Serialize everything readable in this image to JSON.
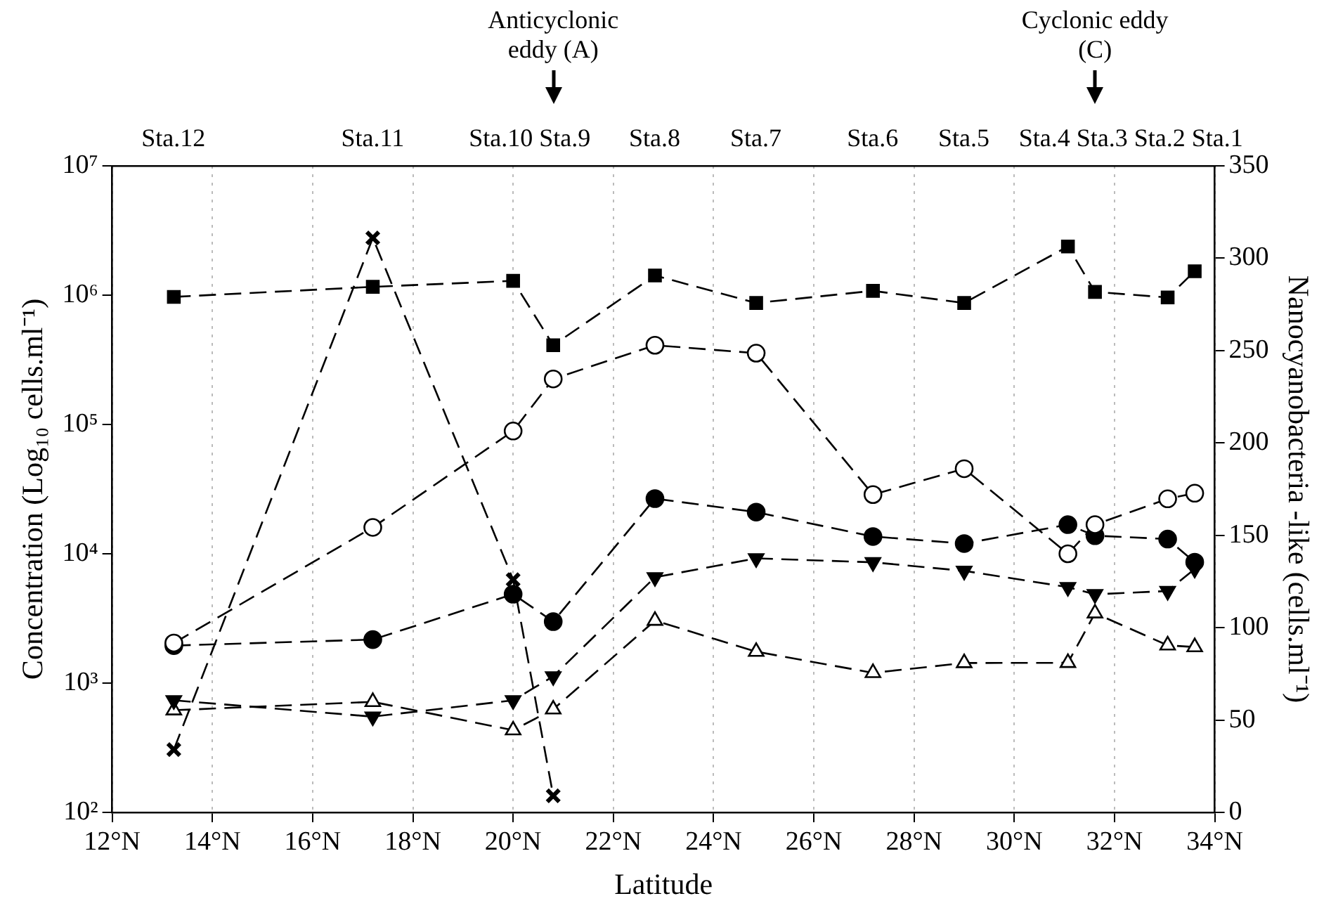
{
  "chart_data": {
    "type": "line",
    "xlabel": "Latitude",
    "ylabel": "Concentration (Log₁₀ cells.ml⁻¹)",
    "y2label": "Nanocyanobacteria -like (cells.ml⁻¹)",
    "x": [
      13.23,
      17.2,
      20.0,
      20.8,
      22.83,
      24.85,
      27.18,
      29.0,
      31.07,
      31.61,
      33.06,
      33.6
    ],
    "xlim": [
      12,
      34
    ],
    "xticks": [
      {
        "value": 12,
        "label": "12°N"
      },
      {
        "value": 14,
        "label": "14°N"
      },
      {
        "value": 16,
        "label": "16°N"
      },
      {
        "value": 18,
        "label": "18°N"
      },
      {
        "value": 20,
        "label": "20°N"
      },
      {
        "value": 22,
        "label": "22°N"
      },
      {
        "value": 24,
        "label": "24°N"
      },
      {
        "value": 26,
        "label": "26°N"
      },
      {
        "value": 28,
        "label": "28°N"
      },
      {
        "value": 30,
        "label": "30°N"
      },
      {
        "value": 32,
        "label": "32°N"
      },
      {
        "value": 34,
        "label": "34°N"
      }
    ],
    "log": "y",
    "ylim": [
      100,
      10000000
    ],
    "yticks": [
      {
        "value": 100,
        "label": "10²"
      },
      {
        "value": 1000,
        "label": "10³"
      },
      {
        "value": 10000,
        "label": "10⁴"
      },
      {
        "value": 100000,
        "label": "10⁵"
      },
      {
        "value": 1000000,
        "label": "10⁶"
      },
      {
        "value": 10000000,
        "label": "10⁷"
      }
    ],
    "y2lim": [
      0,
      350
    ],
    "y2ticks": [
      0,
      50,
      100,
      150,
      200,
      250,
      300,
      350
    ],
    "grid": "x",
    "legend": false,
    "line_style": "dashed",
    "annotations": [
      "Sta.12",
      "Sta.11",
      "Sta.10",
      "Sta.9",
      "Sta.8",
      "Sta.7",
      "Sta.6",
      "Sta.5",
      "Sta.4",
      "Sta.3",
      "Sta.2",
      "Sta.1",
      {
        "text": "Anticyclonic eddy (A)",
        "x": 20.8
      },
      {
        "text": "Cyclonic eddy (C)",
        "x": 31.61
      }
    ],
    "series": [
      {
        "color": "#000000",
        "marker": "square",
        "values": [
          970000,
          1160000,
          1290000,
          410000,
          1420000,
          870000,
          1080000,
          870000,
          2380000,
          1060000,
          960000,
          1530000
        ]
      },
      {
        "color": "#ffffff",
        "marker": "circle",
        "values": [
          2040,
          16000,
          89000,
          225000,
          410000,
          356000,
          28700,
          45500,
          10000,
          16800,
          26600,
          29400
        ]
      },
      {
        "color": "#000000",
        "marker": "circle",
        "values": [
          1950,
          2170,
          4870,
          2990,
          26700,
          21000,
          13600,
          12000,
          16800,
          13800,
          13000,
          8610
        ]
      },
      {
        "color": "#000000",
        "marker": "triangle-down",
        "values": [
          736,
          550,
          736,
          1127,
          6580,
          9220,
          8590,
          7380,
          5520,
          4860,
          5150,
          7640
        ]
      },
      {
        "color": "#ffffff",
        "marker": "triangle",
        "values": [
          617,
          716,
          432,
          627,
          3040,
          1750,
          1200,
          1430,
          1435,
          3470,
          1960,
          1900
        ]
      },
      {
        "color": "#000000",
        "marker": "cross",
        "axis": "y2",
        "x": [
          13.23,
          17.2,
          20.0,
          20.8
        ],
        "values": [
          34,
          311,
          126,
          9
        ]
      }
    ]
  }
}
